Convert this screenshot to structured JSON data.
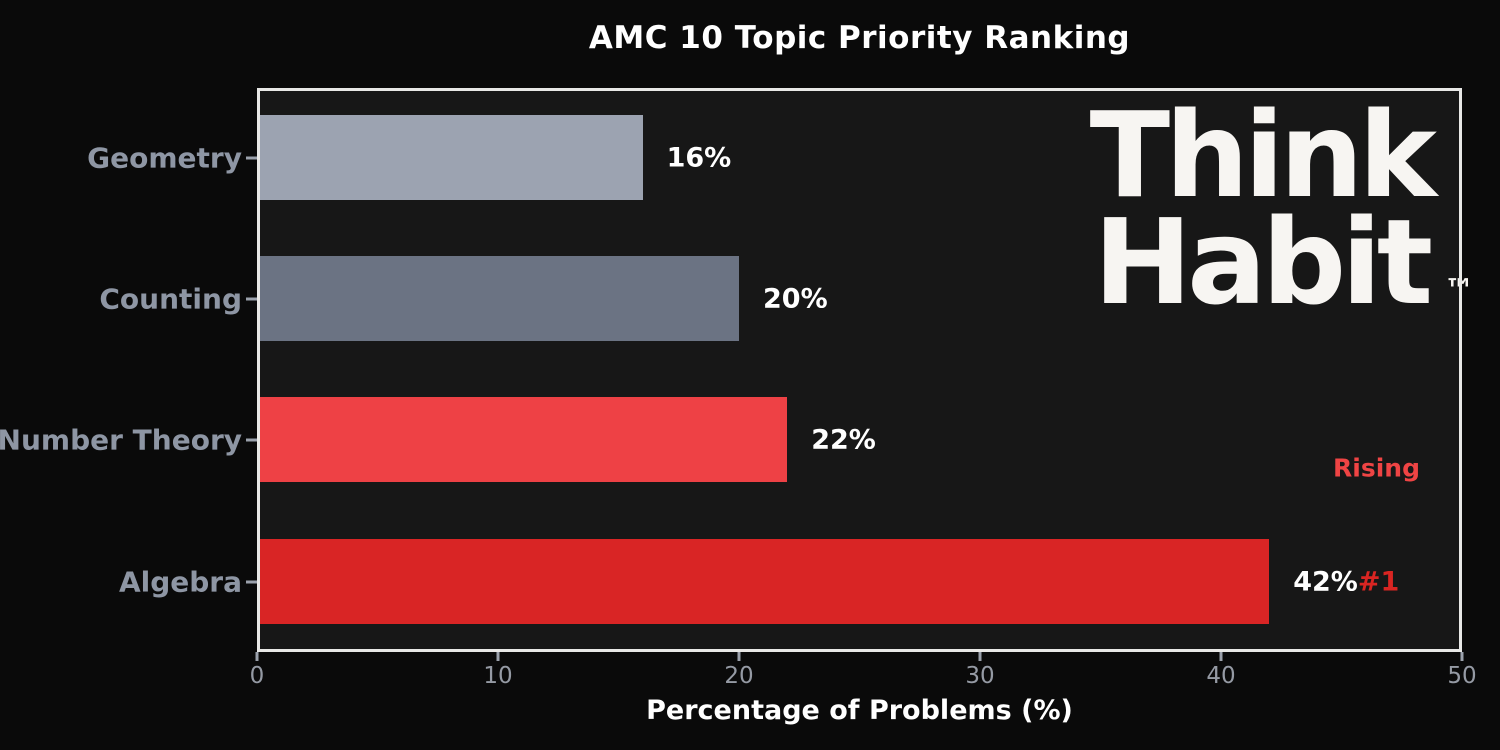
{
  "figure": {
    "background": "#0a0a0a",
    "plot_background": "#171717",
    "spine_color": "#e8e8e6"
  },
  "chart_data": {
    "type": "bar",
    "orientation": "horizontal",
    "title": "AMC 10 Topic Priority Ranking",
    "xlabel": "Percentage of Problems (%)",
    "xlim": [
      0,
      50
    ],
    "xticks": [
      0,
      10,
      20,
      30,
      40,
      50
    ],
    "grid": false,
    "legend": false,
    "row_order": "top-to-bottom",
    "categories": [
      "Geometry",
      "Counting",
      "Number Theory",
      "Algebra"
    ],
    "values": [
      16,
      20,
      22,
      42
    ],
    "bar_labels": [
      "16%",
      "20%",
      "22%",
      "42%"
    ],
    "bar_colors": [
      "#9ca3b1",
      "#6b7383",
      "#ee4145",
      "#d92525"
    ],
    "annotations": [
      {
        "text": "#1",
        "attached_to": "Algebra",
        "color": "#d92522"
      },
      {
        "text": "Rising",
        "attached_to": "Number Theory",
        "color": "#ef4444"
      }
    ]
  },
  "watermark": {
    "line1": "Think",
    "line2": "Habit",
    "trademark": "™",
    "color": "#f7f5f2"
  }
}
